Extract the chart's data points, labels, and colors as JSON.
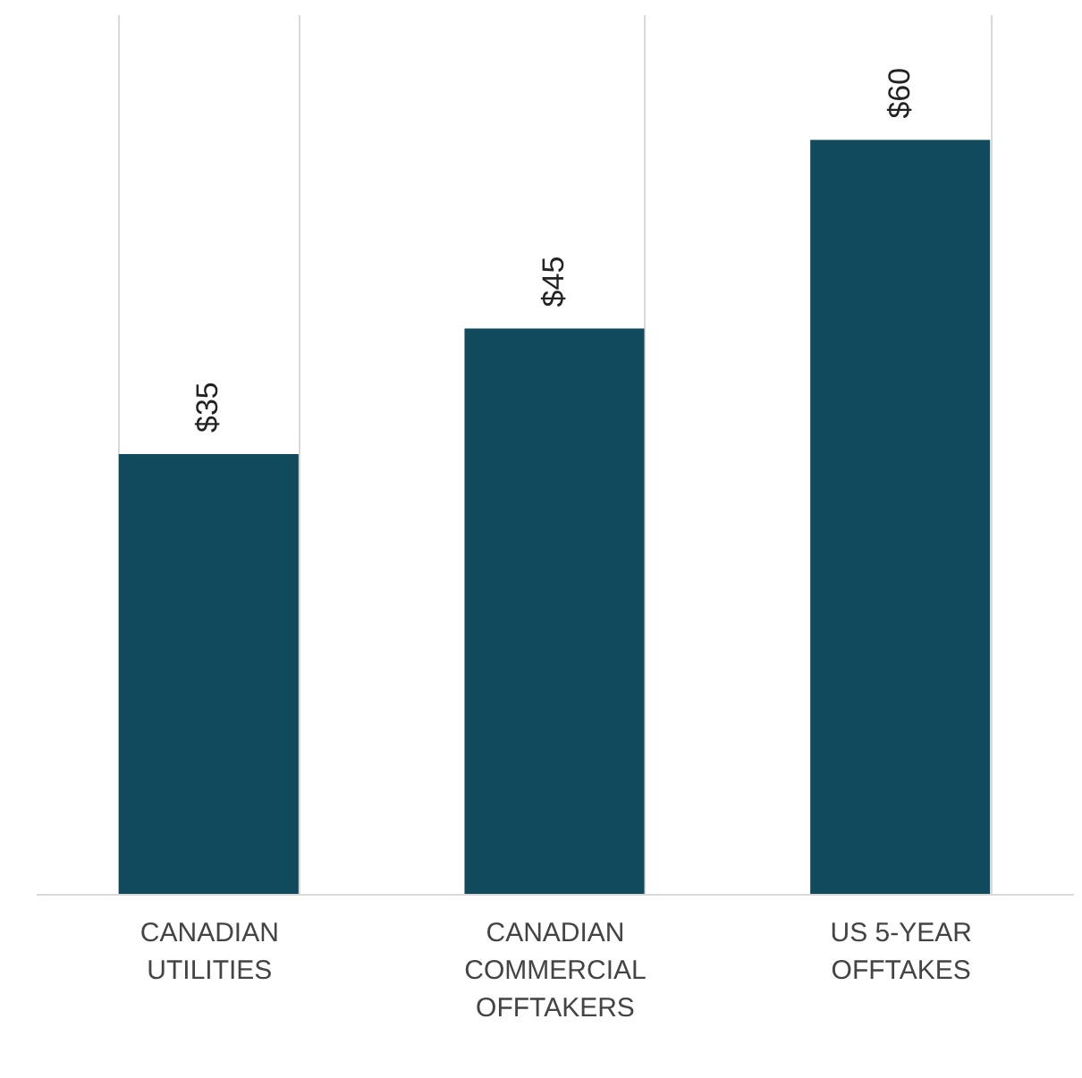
{
  "chart_data": {
    "type": "bar",
    "categories": [
      "CANADIAN\nUTILITIES",
      "CANADIAN\nCOMMERCIAL\nOFFTAKERS",
      "US 5-YEAR\nOFFTAKES"
    ],
    "values": [
      35,
      45,
      60
    ],
    "value_labels": [
      "$35",
      "$45",
      "$60"
    ],
    "color": "#114a5c",
    "ylim": [
      0,
      70
    ],
    "grid": "x"
  }
}
